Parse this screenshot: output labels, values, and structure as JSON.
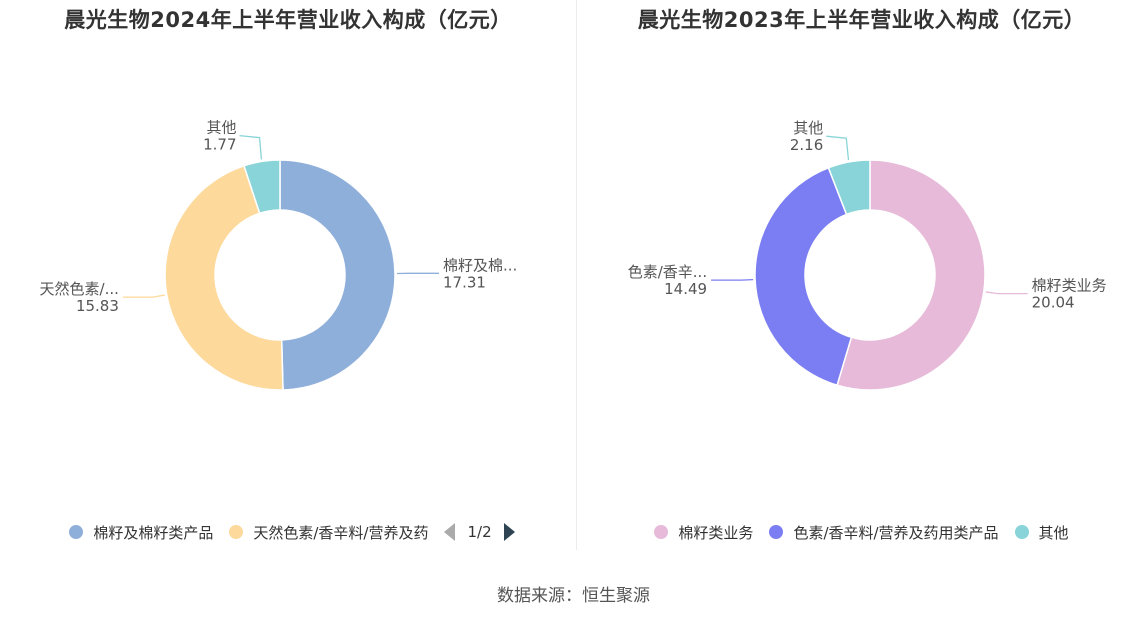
{
  "colors": {
    "left_slices": [
      "#8fafdb",
      "#fdd99b",
      "#88d4d8"
    ],
    "right_slices": [
      "#e6bad8",
      "#7b7ef2",
      "#88d4d8"
    ],
    "pager_disabled": "#aaaaaa",
    "pager_active": "#2f4554"
  },
  "chart_data": [
    {
      "type": "pie",
      "title": "晨光生物2024年上半年营业收入构成（亿元）",
      "slices": [
        {
          "name": "棉籽及棉籽类产品",
          "label": "棉籽及棉...",
          "value": 17.31
        },
        {
          "name": "天然色素/香辛料/营养及药用类产品",
          "label": "天然色素/...",
          "value": 15.83
        },
        {
          "name": "其他",
          "label": "其他",
          "value": 1.77
        }
      ],
      "legend": {
        "items": [
          "棉籽及棉籽类产品",
          "天然色素/香辛料/营养及药"
        ],
        "page": "1/2"
      }
    },
    {
      "type": "pie",
      "title": "晨光生物2023年上半年营业收入构成（亿元）",
      "slices": [
        {
          "name": "棉籽类业务",
          "label": "棉籽类业务",
          "value": 20.04
        },
        {
          "name": "色素/香辛料/营养及药用类产品",
          "label": "色素/香辛...",
          "value": 14.49
        },
        {
          "name": "其他",
          "label": "其他",
          "value": 2.16
        }
      ],
      "legend": {
        "items": [
          "棉籽类业务",
          "色素/香辛料/营养及药用类产品",
          "其他"
        ]
      }
    }
  ],
  "source": "数据来源：恒生聚源"
}
